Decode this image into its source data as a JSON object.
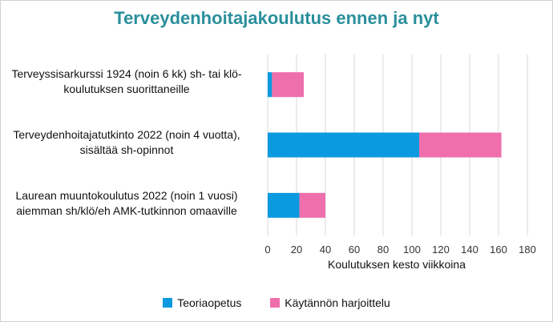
{
  "chart_data": {
    "type": "bar",
    "orientation": "horizontal",
    "stacked": true,
    "title": "Terveydenhoitajakoulutus  ennen ja nyt",
    "xlabel": "Koulutuksen kesto viikkoina",
    "categories": [
      [
        "Terveyssisarkurssi 1924 (noin 6 kk) sh- tai klö-",
        "koulutuksen suorittaneille"
      ],
      [
        "Terveydenhoitajatutkinto 2022 (noin 4 vuotta),",
        "sisältää sh-opinnot"
      ],
      [
        "Laurean muuntokoulutus 2022 (noin 1 vuosi)",
        "aiemman sh/klö/eh AMK-tutkinnon omaaville"
      ]
    ],
    "series": [
      {
        "name": "Teoriaopetus",
        "color": "#0a9ae0",
        "values": [
          3,
          105,
          22
        ]
      },
      {
        "name": "Käytännön harjoittelu",
        "color": "#ee6fab",
        "values": [
          22,
          57,
          18
        ]
      }
    ],
    "xlim": [
      0,
      180
    ],
    "xticks": [
      0,
      20,
      40,
      60,
      80,
      100,
      120,
      140,
      160,
      180
    ],
    "grid": "vertical",
    "legend_position": "bottom"
  }
}
